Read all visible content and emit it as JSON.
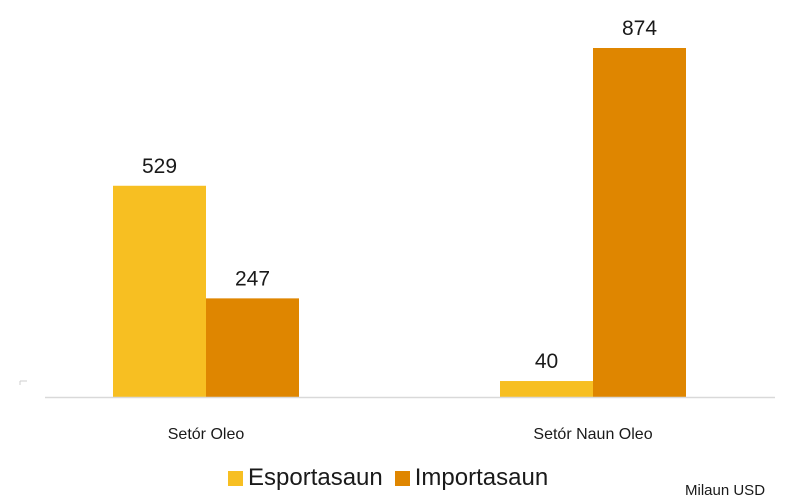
{
  "chart_data": {
    "type": "bar",
    "categories": [
      "Setór Oleo",
      "Setór Naun Oleo"
    ],
    "series": [
      {
        "name": "Esportasaun",
        "values": [
          529,
          40
        ],
        "color": "#F7BF22"
      },
      {
        "name": "Importasaun",
        "values": [
          247,
          874
        ],
        "color": "#DF8600"
      }
    ],
    "ylim": [
      0,
      874
    ],
    "grid": false,
    "legend": "bottom",
    "unit_note": "Milaun USD"
  }
}
